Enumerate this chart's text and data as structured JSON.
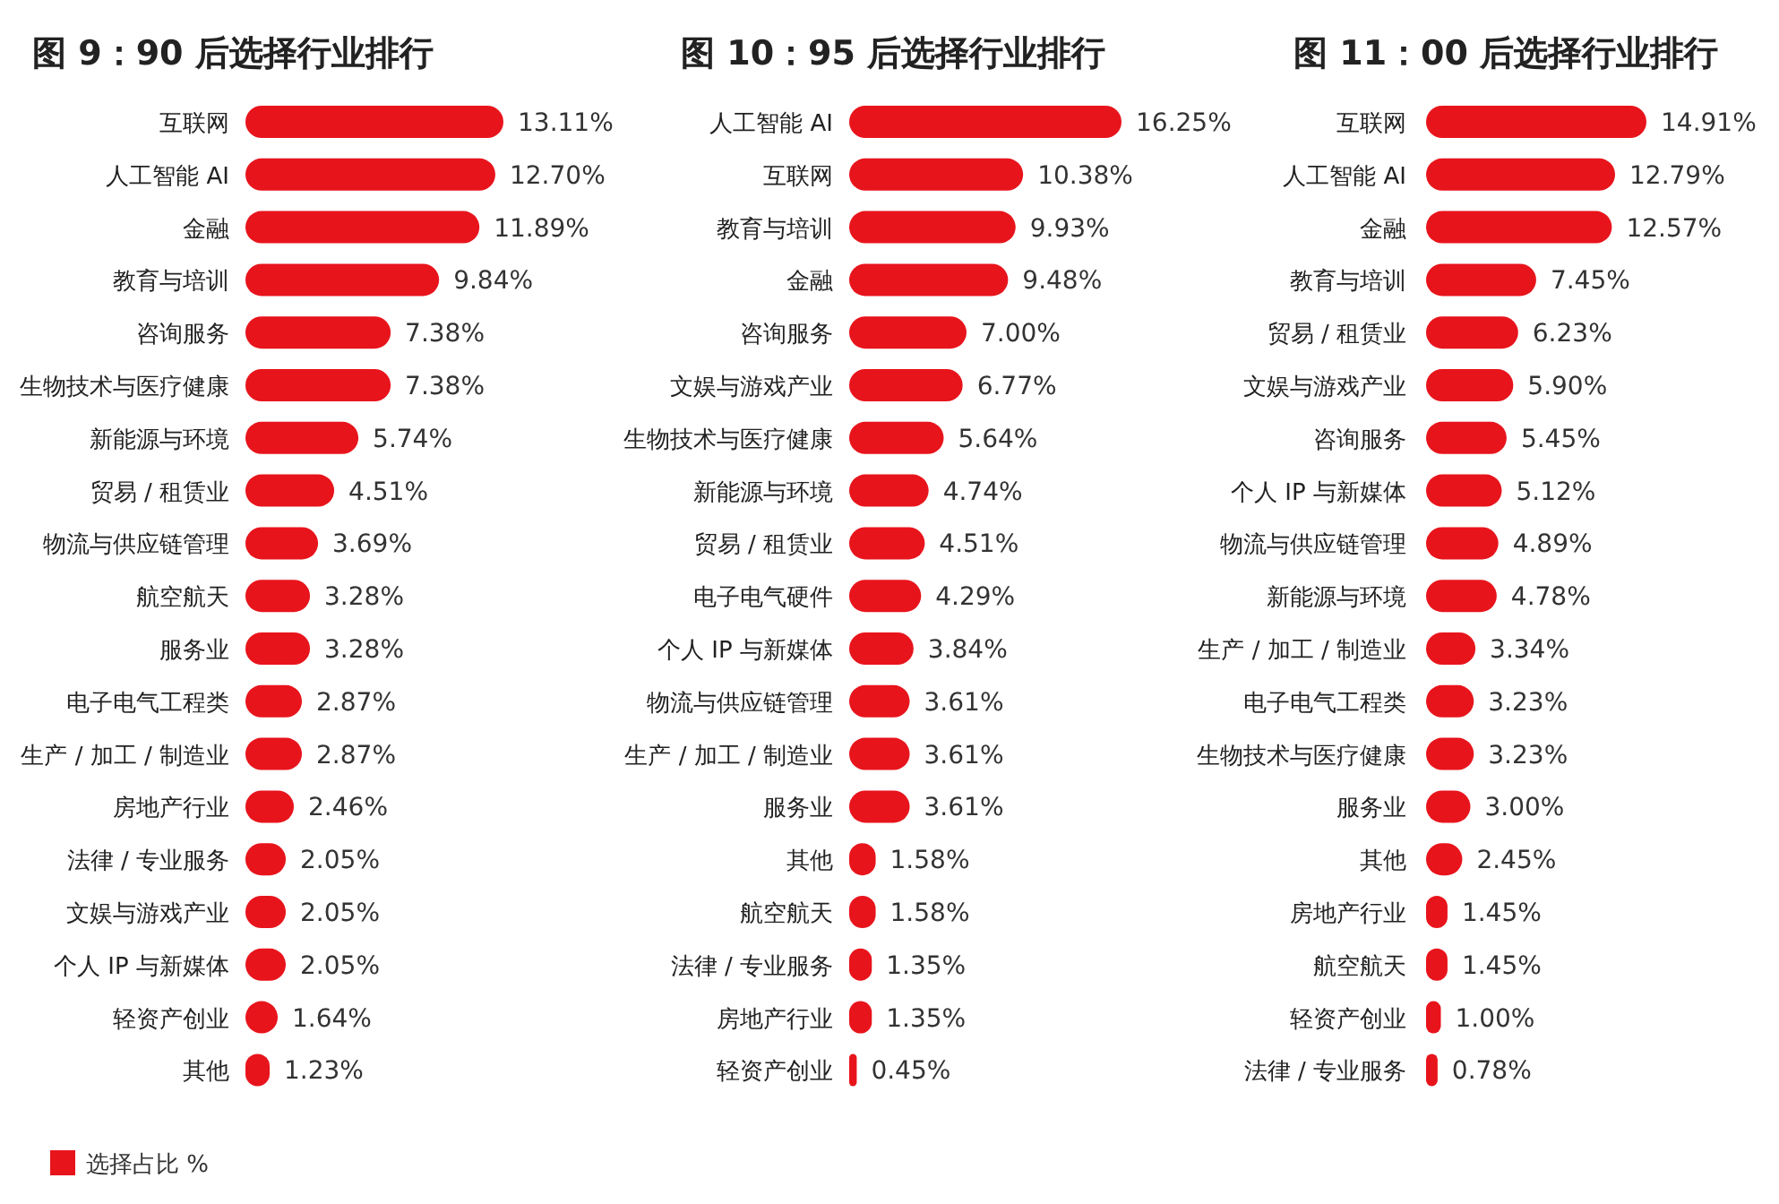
{
  "chart_data": [
    {
      "type": "bar",
      "orientation": "horizontal",
      "title": "图 9：90 后选择行业排行",
      "legend": "bottom left",
      "categories": [
        "互联网",
        "人工智能 AI",
        "金融",
        "教育与培训",
        "咨询服务",
        "生物技术与医疗健康",
        "新能源与环境",
        "贸易 / 租赁业",
        "物流与供应链管理",
        "航空航天",
        "服务业",
        "电子电气工程类",
        "生产 / 加工 / 制造业",
        "房地产行业",
        "法律 / 专业服务",
        "文娱与游戏产业",
        "个人 IP 与新媒体",
        "轻资产创业",
        "其他"
      ],
      "series": [
        {
          "name": "选择占比 %",
          "color": "#e8141c",
          "values": [
            13.11,
            12.7,
            11.89,
            9.84,
            7.38,
            7.38,
            5.74,
            4.51,
            3.69,
            3.28,
            3.28,
            2.87,
            2.87,
            2.46,
            2.05,
            2.05,
            2.05,
            1.64,
            1.23
          ],
          "value_labels": [
            "13.11%",
            "12.70%",
            "11.89%",
            "9.84%",
            "7.38%",
            "7.38%",
            "5.74%",
            "4.51%",
            "3.69%",
            "3.28%",
            "3.28%",
            "2.87%",
            "2.87%",
            "2.46%",
            "2.05%",
            "2.05%",
            "2.05%",
            "1.64%",
            "1.23%"
          ]
        }
      ]
    },
    {
      "type": "bar",
      "orientation": "horizontal",
      "title": "图 10：95 后选择行业排行",
      "color": "#e8141c",
      "categories": [
        "人工智能 AI",
        "互联网",
        "教育与培训",
        "金融",
        "咨询服务",
        "文娱与游戏产业",
        "生物技术与医疗健康",
        "新能源与环境",
        "贸易 / 租赁业",
        "电子电气硬件",
        "个人 IP 与新媒体",
        "物流与供应链管理",
        "生产 / 加工 / 制造业",
        "服务业",
        "其他",
        "航空航天",
        "法律 / 专业服务",
        "房地产行业",
        "轻资产创业"
      ],
      "values": [
        16.25,
        10.38,
        9.93,
        9.48,
        7.0,
        6.77,
        5.64,
        4.74,
        4.51,
        4.29,
        3.84,
        3.61,
        3.61,
        3.61,
        1.58,
        1.58,
        1.35,
        1.35,
        0.45
      ],
      "value_labels": [
        "16.25%",
        "10.38%",
        "9.93%",
        "9.48%",
        "7.00%",
        "6.77%",
        "5.64%",
        "4.74%",
        "4.51%",
        "4.29%",
        "3.84%",
        "3.61%",
        "3.61%",
        "3.61%",
        "1.58%",
        "1.58%",
        "1.35%",
        "1.35%",
        "0.45%"
      ]
    },
    {
      "type": "bar",
      "orientation": "horizontal",
      "title": "图 11：00 后选择行业排行",
      "color": "#e8141c",
      "categories": [
        "互联网",
        "人工智能 AI",
        "金融",
        "教育与培训",
        "贸易 / 租赁业",
        "文娱与游戏产业",
        "咨询服务",
        "个人 IP 与新媒体",
        "物流与供应链管理",
        "新能源与环境",
        "生产 / 加工 / 制造业",
        "电子电气工程类",
        "生物技术与医疗健康",
        "服务业",
        "其他",
        "房地产行业",
        "航空航天",
        "轻资产创业",
        "法律 / 专业服务"
      ],
      "values": [
        14.91,
        12.79,
        12.57,
        7.45,
        6.23,
        5.9,
        5.45,
        5.12,
        4.89,
        4.78,
        3.34,
        3.23,
        3.23,
        3.0,
        2.45,
        1.45,
        1.45,
        1.0,
        0.78
      ],
      "value_labels": [
        "14.91%",
        "12.79%",
        "12.57%",
        "7.45%",
        "6.23%",
        "5.90%",
        "5.45%",
        "5.12%",
        "4.89%",
        "4.78%",
        "3.34%",
        "3.23%",
        "3.23%",
        "3.00%",
        "2.45%",
        "1.45%",
        "1.45%",
        "1.00%",
        "0.78%"
      ]
    }
  ]
}
